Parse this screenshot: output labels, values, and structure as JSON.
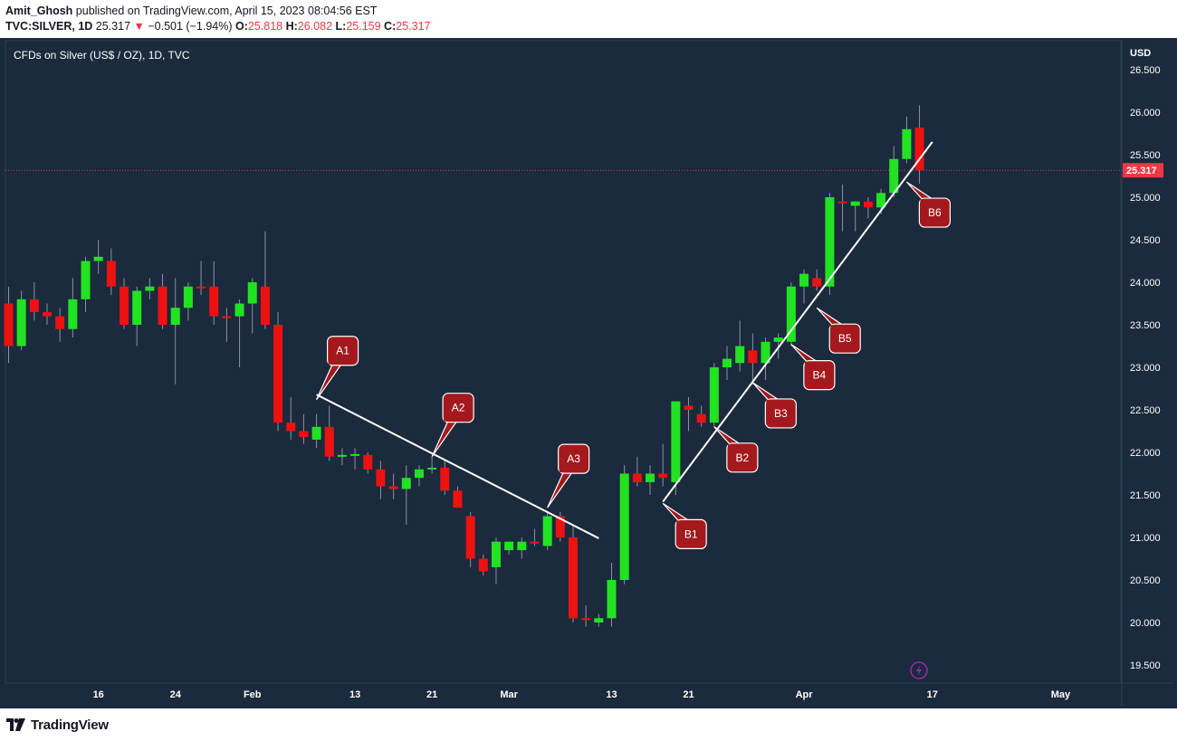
{
  "header": {
    "author": "Amit_Ghosh",
    "published_text": "published on TradingView.com, April 15, 2023 08:04:56 EST",
    "symbol_interval": "TVC:SILVER, 1D",
    "last_price": "25.317",
    "change_arrow": "▼",
    "change_text": "−0.501 (−1.94%)",
    "ohlc": [
      {
        "label": "O:",
        "value": "25.818"
      },
      {
        "label": "H:",
        "value": "26.082"
      },
      {
        "label": "L:",
        "value": "25.159"
      },
      {
        "label": "C:",
        "value": "25.317"
      }
    ]
  },
  "footer": {
    "brand": "TradingView"
  },
  "colors": {
    "background": "#1b2a3c",
    "up": "#22e322",
    "down": "#ee1111",
    "wick": "#8a94a3",
    "trendline": "#ffffff",
    "callout": "#a3191d",
    "price_tag": "#f23645",
    "axis_text": "#ffffff"
  },
  "chart_data": {
    "type": "candlestick",
    "title": "CFDs on Silver (US$ / OZ), 1D, TVC",
    "currency_label": "USD",
    "ylim": [
      19.3,
      26.9
    ],
    "y_ticks": [
      "19.500",
      "20.000",
      "20.500",
      "21.000",
      "21.500",
      "22.000",
      "22.500",
      "23.000",
      "23.500",
      "24.000",
      "24.500",
      "25.000",
      "25.500",
      "26.000",
      "26.500"
    ],
    "x_ticks": [
      {
        "label": "16",
        "date": "2023-01-16"
      },
      {
        "label": "24",
        "date": "2023-01-24"
      },
      {
        "label": "Feb",
        "date": "2023-02-01"
      },
      {
        "label": "13",
        "date": "2023-02-13"
      },
      {
        "label": "21",
        "date": "2023-02-21"
      },
      {
        "label": "Mar",
        "date": "2023-03-01"
      },
      {
        "label": "13",
        "date": "2023-03-13"
      },
      {
        "label": "21",
        "date": "2023-03-21"
      },
      {
        "label": "Apr",
        "date": "2023-04-03"
      },
      {
        "label": "17",
        "date": "2023-04-17"
      },
      {
        "label": "May",
        "date": "2023-05-01"
      }
    ],
    "last_price_label": "25.317",
    "last_price": 25.317,
    "candles": [
      {
        "date": "2023-01-05",
        "o": 23.75,
        "h": 23.95,
        "l": 23.05,
        "c": 23.25
      },
      {
        "date": "2023-01-06",
        "o": 23.25,
        "h": 23.9,
        "l": 23.2,
        "c": 23.8
      },
      {
        "date": "2023-01-09",
        "o": 23.8,
        "h": 24.0,
        "l": 23.55,
        "c": 23.65
      },
      {
        "date": "2023-01-10",
        "o": 23.65,
        "h": 23.75,
        "l": 23.5,
        "c": 23.6
      },
      {
        "date": "2023-01-11",
        "o": 23.6,
        "h": 23.7,
        "l": 23.3,
        "c": 23.45
      },
      {
        "date": "2023-01-12",
        "o": 23.45,
        "h": 24.05,
        "l": 23.35,
        "c": 23.8
      },
      {
        "date": "2023-01-13",
        "o": 23.8,
        "h": 24.3,
        "l": 23.65,
        "c": 24.25
      },
      {
        "date": "2023-01-16",
        "o": 24.25,
        "h": 24.5,
        "l": 24.1,
        "c": 24.3
      },
      {
        "date": "2023-01-17",
        "o": 24.25,
        "h": 24.4,
        "l": 23.85,
        "c": 23.95
      },
      {
        "date": "2023-01-18",
        "o": 23.95,
        "h": 24.05,
        "l": 23.45,
        "c": 23.5
      },
      {
        "date": "2023-01-19",
        "o": 23.5,
        "h": 23.95,
        "l": 23.25,
        "c": 23.9
      },
      {
        "date": "2023-01-20",
        "o": 23.9,
        "h": 24.05,
        "l": 23.8,
        "c": 23.95
      },
      {
        "date": "2023-01-23",
        "o": 23.95,
        "h": 24.1,
        "l": 23.45,
        "c": 23.5
      },
      {
        "date": "2023-01-24",
        "o": 23.5,
        "h": 24.05,
        "l": 22.8,
        "c": 23.7
      },
      {
        "date": "2023-01-25",
        "o": 23.7,
        "h": 24.0,
        "l": 23.55,
        "c": 23.95
      },
      {
        "date": "2023-01-26",
        "o": 23.95,
        "h": 24.25,
        "l": 23.85,
        "c": 23.93
      },
      {
        "date": "2023-01-27",
        "o": 23.95,
        "h": 24.25,
        "l": 23.5,
        "c": 23.6
      },
      {
        "date": "2023-01-30",
        "o": 23.6,
        "h": 23.7,
        "l": 23.3,
        "c": 23.58
      },
      {
        "date": "2023-01-31",
        "o": 23.6,
        "h": 23.8,
        "l": 23.0,
        "c": 23.75
      },
      {
        "date": "2023-02-01",
        "o": 23.75,
        "h": 24.05,
        "l": 23.4,
        "c": 24.0
      },
      {
        "date": "2023-02-02",
        "o": 23.95,
        "h": 24.6,
        "l": 23.45,
        "c": 23.5
      },
      {
        "date": "2023-02-03",
        "o": 23.5,
        "h": 23.65,
        "l": 22.25,
        "c": 22.35
      },
      {
        "date": "2023-02-06",
        "o": 22.35,
        "h": 22.65,
        "l": 22.15,
        "c": 22.25
      },
      {
        "date": "2023-02-07",
        "o": 22.25,
        "h": 22.45,
        "l": 22.1,
        "c": 22.18
      },
      {
        "date": "2023-02-08",
        "o": 22.15,
        "h": 22.45,
        "l": 22.05,
        "c": 22.3
      },
      {
        "date": "2023-02-09",
        "o": 22.3,
        "h": 22.55,
        "l": 21.9,
        "c": 21.95
      },
      {
        "date": "2023-02-10",
        "o": 21.95,
        "h": 22.05,
        "l": 21.85,
        "c": 21.97
      },
      {
        "date": "2023-02-13",
        "o": 21.97,
        "h": 22.05,
        "l": 21.8,
        "c": 21.98
      },
      {
        "date": "2023-02-14",
        "o": 21.97,
        "h": 22.0,
        "l": 21.75,
        "c": 21.8
      },
      {
        "date": "2023-02-15",
        "o": 21.8,
        "h": 21.9,
        "l": 21.45,
        "c": 21.6
      },
      {
        "date": "2023-02-16",
        "o": 21.6,
        "h": 21.75,
        "l": 21.45,
        "c": 21.57
      },
      {
        "date": "2023-02-17",
        "o": 21.57,
        "h": 21.85,
        "l": 21.15,
        "c": 21.7
      },
      {
        "date": "2023-02-20",
        "o": 21.7,
        "h": 21.85,
        "l": 21.6,
        "c": 21.8
      },
      {
        "date": "2023-02-21",
        "o": 21.8,
        "h": 21.95,
        "l": 21.75,
        "c": 21.82
      },
      {
        "date": "2023-02-22",
        "o": 21.82,
        "h": 21.92,
        "l": 21.5,
        "c": 21.55
      },
      {
        "date": "2023-02-23",
        "o": 21.55,
        "h": 21.6,
        "l": 21.35,
        "c": 21.35
      },
      {
        "date": "2023-02-24",
        "o": 21.25,
        "h": 21.3,
        "l": 20.65,
        "c": 20.75
      },
      {
        "date": "2023-02-27",
        "o": 20.75,
        "h": 20.8,
        "l": 20.55,
        "c": 20.6
      },
      {
        "date": "2023-02-28",
        "o": 20.65,
        "h": 21.0,
        "l": 20.45,
        "c": 20.95
      },
      {
        "date": "2023-03-01",
        "o": 20.85,
        "h": 20.95,
        "l": 20.8,
        "c": 20.95
      },
      {
        "date": "2023-03-02",
        "o": 20.85,
        "h": 21.0,
        "l": 20.75,
        "c": 20.95
      },
      {
        "date": "2023-03-03",
        "o": 20.95,
        "h": 21.1,
        "l": 20.9,
        "c": 20.93
      },
      {
        "date": "2023-03-06",
        "o": 20.9,
        "h": 21.3,
        "l": 20.85,
        "c": 21.25
      },
      {
        "date": "2023-03-07",
        "o": 21.25,
        "h": 21.3,
        "l": 20.95,
        "c": 21.0
      },
      {
        "date": "2023-03-08",
        "o": 21.0,
        "h": 21.15,
        "l": 20.0,
        "c": 20.05
      },
      {
        "date": "2023-03-09",
        "o": 20.05,
        "h": 20.2,
        "l": 19.95,
        "c": 20.03
      },
      {
        "date": "2023-03-10",
        "o": 20.0,
        "h": 20.1,
        "l": 19.95,
        "c": 20.05
      },
      {
        "date": "2023-03-13",
        "o": 20.05,
        "h": 20.7,
        "l": 19.95,
        "c": 20.5
      },
      {
        "date": "2023-03-14",
        "o": 20.5,
        "h": 21.85,
        "l": 20.45,
        "c": 21.75
      },
      {
        "date": "2023-03-15",
        "o": 21.75,
        "h": 21.95,
        "l": 21.6,
        "c": 21.65
      },
      {
        "date": "2023-03-16",
        "o": 21.65,
        "h": 21.85,
        "l": 21.5,
        "c": 21.75
      },
      {
        "date": "2023-03-17",
        "o": 21.75,
        "h": 22.1,
        "l": 21.6,
        "c": 21.7
      },
      {
        "date": "2023-03-20",
        "o": 21.65,
        "h": 22.55,
        "l": 21.5,
        "c": 22.6
      },
      {
        "date": "2023-03-21",
        "o": 22.55,
        "h": 22.65,
        "l": 22.25,
        "c": 22.5
      },
      {
        "date": "2023-03-22",
        "o": 22.45,
        "h": 22.55,
        "l": 22.3,
        "c": 22.35
      },
      {
        "date": "2023-03-23",
        "o": 22.35,
        "h": 23.05,
        "l": 22.3,
        "c": 23.0
      },
      {
        "date": "2023-03-24",
        "o": 23.0,
        "h": 23.25,
        "l": 22.85,
        "c": 23.1
      },
      {
        "date": "2023-03-27",
        "o": 23.05,
        "h": 23.55,
        "l": 22.95,
        "c": 23.25
      },
      {
        "date": "2023-03-28",
        "o": 23.2,
        "h": 23.4,
        "l": 22.8,
        "c": 23.05
      },
      {
        "date": "2023-03-29",
        "o": 23.05,
        "h": 23.35,
        "l": 22.85,
        "c": 23.3
      },
      {
        "date": "2023-03-30",
        "o": 23.3,
        "h": 23.4,
        "l": 23.1,
        "c": 23.35
      },
      {
        "date": "2023-03-31",
        "o": 23.3,
        "h": 24.0,
        "l": 23.25,
        "c": 23.95
      },
      {
        "date": "2023-04-03",
        "o": 23.95,
        "h": 24.15,
        "l": 23.75,
        "c": 24.1
      },
      {
        "date": "2023-04-04",
        "o": 24.05,
        "h": 24.15,
        "l": 23.9,
        "c": 23.95
      },
      {
        "date": "2023-04-05",
        "o": 23.95,
        "h": 25.05,
        "l": 23.85,
        "c": 25.0
      },
      {
        "date": "2023-04-06",
        "o": 24.95,
        "h": 25.15,
        "l": 24.6,
        "c": 24.93
      },
      {
        "date": "2023-04-07",
        "o": 24.9,
        "h": 24.95,
        "l": 24.6,
        "c": 24.95
      },
      {
        "date": "2023-04-10",
        "o": 24.95,
        "h": 25.0,
        "l": 24.75,
        "c": 24.88
      },
      {
        "date": "2023-04-11",
        "o": 24.88,
        "h": 25.1,
        "l": 24.8,
        "c": 25.05
      },
      {
        "date": "2023-04-12",
        "o": 25.05,
        "h": 25.6,
        "l": 25.0,
        "c": 25.45
      },
      {
        "date": "2023-04-13",
        "o": 25.45,
        "h": 25.95,
        "l": 25.4,
        "c": 25.8
      },
      {
        "date": "2023-04-14",
        "o": 25.818,
        "h": 26.082,
        "l": 25.159,
        "c": 25.317
      }
    ],
    "trendlines": [
      {
        "name": "resistance",
        "from": {
          "date": "2023-02-08",
          "price": 22.68
        },
        "to": {
          "date": "2023-03-10",
          "price": 20.99
        }
      },
      {
        "name": "support",
        "from": {
          "date": "2023-03-17",
          "price": 21.42
        },
        "to": {
          "date": "2023-04-17",
          "price": 25.65
        }
      }
    ],
    "annotations": [
      {
        "label": "A1",
        "date": "2023-02-08",
        "price": 22.62,
        "dir": "up"
      },
      {
        "label": "A2",
        "date": "2023-02-21",
        "price": 21.95,
        "dir": "up"
      },
      {
        "label": "A3",
        "date": "2023-03-06",
        "price": 21.35,
        "dir": "up"
      },
      {
        "label": "B1",
        "date": "2023-03-17",
        "price": 21.4,
        "dir": "down"
      },
      {
        "label": "B2",
        "date": "2023-03-23",
        "price": 22.3,
        "dir": "down"
      },
      {
        "label": "B3",
        "date": "2023-03-28",
        "price": 22.82,
        "dir": "down"
      },
      {
        "label": "B4",
        "date": "2023-03-31",
        "price": 23.27,
        "dir": "down"
      },
      {
        "label": "B5",
        "date": "2023-04-04",
        "price": 23.7,
        "dir": "down"
      },
      {
        "label": "B6",
        "date": "2023-04-13",
        "price": 25.18,
        "dir": "down"
      }
    ],
    "grid": false,
    "legend": "none"
  }
}
